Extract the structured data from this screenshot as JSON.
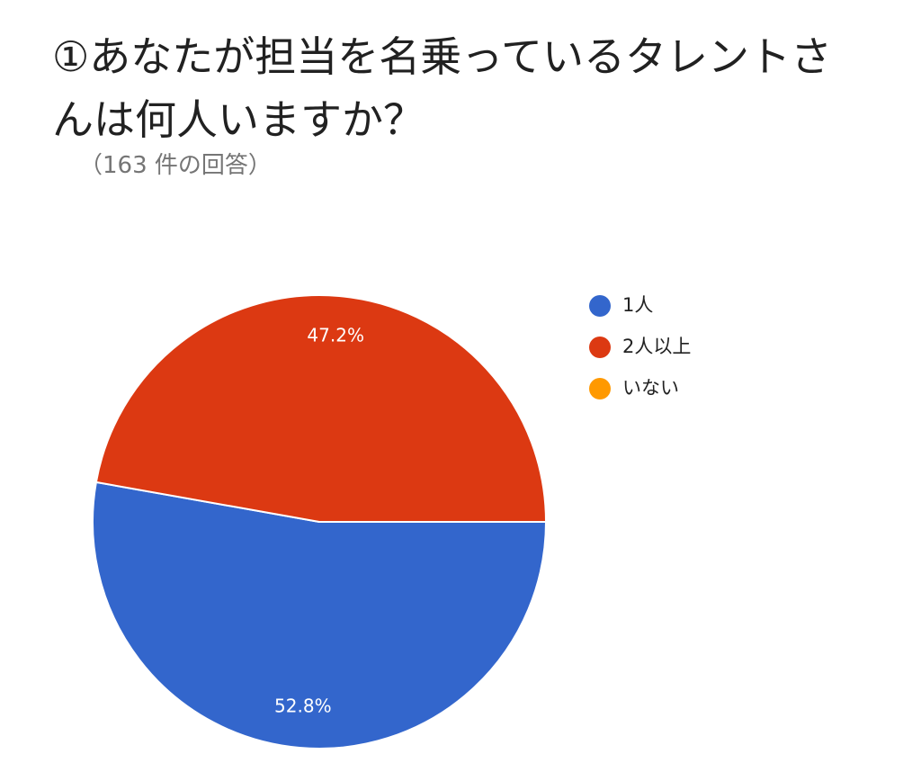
{
  "chart_data": {
    "type": "pie",
    "title": "①あなたが担当を名乗っているタレントさんは何人いますか？",
    "subtitle": "（163 件の回答）",
    "categories": [
      "1人",
      "2人以上",
      "いない"
    ],
    "values": [
      52.8,
      47.2,
      0
    ],
    "value_labels": [
      "52.8%",
      "47.2%",
      null
    ],
    "colors": [
      "#3366cc",
      "#dc3912",
      "#ff9900"
    ],
    "legend": "right"
  }
}
